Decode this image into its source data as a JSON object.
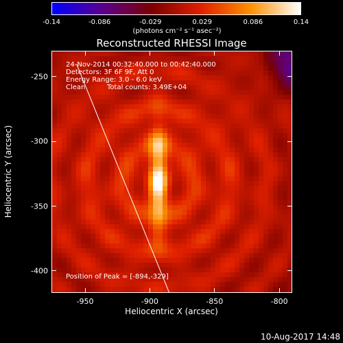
{
  "chart_data": {
    "type": "heatmap",
    "title": "Reconstructed RHESSI Image",
    "xlabel": "Heliocentric X (arcsec)",
    "ylabel": "Heliocentric Y (arcsec)",
    "xlim": [
      -976,
      -790
    ],
    "ylim": [
      -417,
      -230
    ],
    "xticks": [
      "-950",
      "-900",
      "-850",
      "-800"
    ],
    "xtick_values": [
      -950,
      -900,
      -850,
      -800
    ],
    "yticks": [
      "-250",
      "-300",
      "-350",
      "-400"
    ],
    "ytick_values": [
      -250,
      -300,
      -350,
      -400
    ],
    "colorbar": {
      "ticks": [
        "-0.14",
        "-0.086",
        "-0.029",
        "0.029",
        "0.086",
        "0.14"
      ],
      "tick_values": [
        -0.14,
        -0.086,
        -0.029,
        0.029,
        0.086,
        0.14
      ],
      "label": "(photons cm⁻² s⁻¹ asec⁻²)",
      "colors": [
        "#0000ff",
        "#5a0090",
        "#7a0000",
        "#e02000",
        "#ff9000",
        "#ffffff"
      ]
    },
    "source": {
      "x": -894,
      "y": -329,
      "sigma_x": 5,
      "sigma_y": 28
    },
    "limb": {
      "x1": -957,
      "y1": -240,
      "x2": -880,
      "y2": -430
    }
  },
  "annotations": {
    "line1": "24-Nov-2014 00:32:40.000 to 00:42:40.000",
    "line2": "Detectors: 3F 6F 9F, Att 0",
    "line3": "Energy Range: 3.0 - 6.0 keV",
    "line4_left": "Clean",
    "line4_right": "Total counts: 3.49E+04",
    "peak": "Position of Peak = [-894,-329]"
  },
  "footer": "10-Aug-2017 14:48"
}
